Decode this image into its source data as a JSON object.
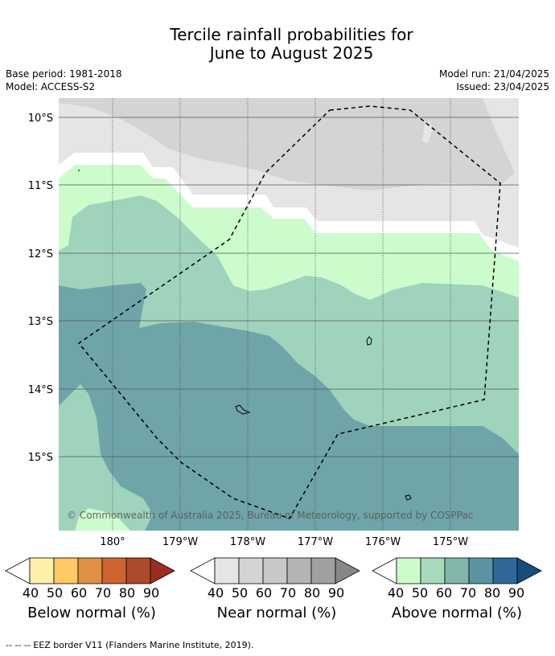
{
  "title": {
    "line1": "Tercile rainfall probabilities for",
    "line2": "June to August 2025"
  },
  "meta": {
    "base_period": "Base period: 1981-2018",
    "model": "Model: ACCESS-S2",
    "model_run": "Model run: 21/04/2025",
    "issued": "Issued: 23/04/2025"
  },
  "map": {
    "lat_labels": [
      "10°S",
      "11°S",
      "12°S",
      "13°S",
      "14°S",
      "15°S"
    ],
    "lon_labels": [
      "180°",
      "179°W",
      "178°W",
      "177°W",
      "176°W",
      "175°W"
    ],
    "copyright": "© Commonwealth of Australia 2025, Bureau of Meteorology, supported by COSPPac",
    "colors": {
      "near40": "#e5e5e5",
      "near50": "#d4d4d4",
      "above40": "#ccfccc",
      "above50": "#a0d3bc",
      "above70": "#6fa4a8",
      "land_outline": "#000000"
    }
  },
  "colorbars": [
    {
      "name": "Below normal (%)",
      "colors": [
        "#fff0a8",
        "#fec864",
        "#e09044",
        "#cf6433",
        "#ad4a2b",
        "#9b2e1f"
      ]
    },
    {
      "name": "Near normal (%)",
      "colors": [
        "#e5e5e5",
        "#d4d4d4",
        "#c8c8c8",
        "#b4b4b4",
        "#a0a0a0",
        "#878787"
      ]
    },
    {
      "name": "Above normal (%)",
      "colors": [
        "#ccfccc",
        "#a6dabc",
        "#82b6aa",
        "#5b93a3",
        "#2f6898",
        "#184c7c"
      ]
    }
  ],
  "ticks": [
    "40",
    "50",
    "60",
    "70",
    "80",
    "90"
  ],
  "footer": "--  --  -- EEZ border V11 (Flanders Marine Institute, 2019)."
}
